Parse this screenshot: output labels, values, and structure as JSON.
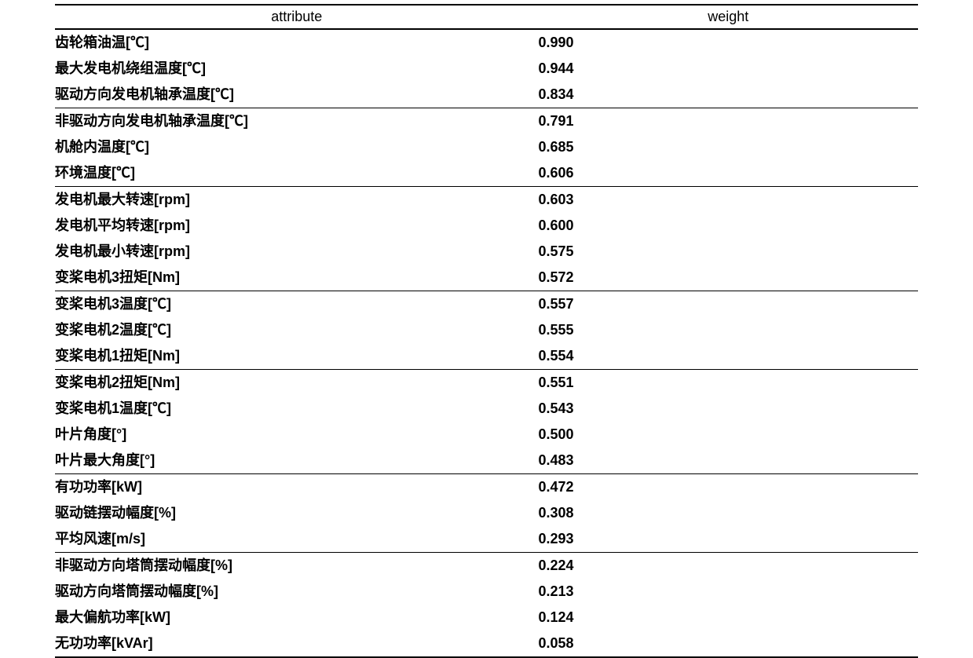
{
  "table": {
    "columns": {
      "attribute": "attribute",
      "weight": "weight"
    },
    "rows": [
      {
        "attribute": "齿轮箱油温[℃]",
        "weight": "0.990",
        "group_end": false
      },
      {
        "attribute": "最大发电机绕组温度[℃]",
        "weight": "0.944",
        "group_end": false
      },
      {
        "attribute": "驱动方向发电机轴承温度[℃]",
        "weight": "0.834",
        "group_end": true
      },
      {
        "attribute": "非驱动方向发电机轴承温度[℃]",
        "weight": "0.791",
        "group_end": false
      },
      {
        "attribute": "机舱内温度[℃]",
        "weight": "0.685",
        "group_end": false
      },
      {
        "attribute": "环境温度[℃]",
        "weight": "0.606",
        "group_end": true
      },
      {
        "attribute": "发电机最大转速[rpm]",
        "weight": "0.603",
        "group_end": false
      },
      {
        "attribute": "发电机平均转速[rpm]",
        "weight": "0.600",
        "group_end": false
      },
      {
        "attribute": "发电机最小转速[rpm]",
        "weight": "0.575",
        "group_end": false
      },
      {
        "attribute": "变桨电机3扭矩[Nm]",
        "weight": "0.572",
        "group_end": true
      },
      {
        "attribute": "变桨电机3温度[℃]",
        "weight": "0.557",
        "group_end": false
      },
      {
        "attribute": "变桨电机2温度[℃]",
        "weight": "0.555",
        "group_end": false
      },
      {
        "attribute": "变桨电机1扭矩[Nm]",
        "weight": "0.554",
        "group_end": true
      },
      {
        "attribute": "变桨电机2扭矩[Nm]",
        "weight": "0.551",
        "group_end": false
      },
      {
        "attribute": "变桨电机1温度[℃]",
        "weight": "0.543",
        "group_end": false
      },
      {
        "attribute": "叶片角度[°]",
        "weight": "0.500",
        "group_end": false
      },
      {
        "attribute": "叶片最大角度[°]",
        "weight": "0.483",
        "group_end": true
      },
      {
        "attribute": "有功功率[kW]",
        "weight": "0.472",
        "group_end": false
      },
      {
        "attribute": "驱动链摆动幅度[%]",
        "weight": "0.308",
        "group_end": false
      },
      {
        "attribute": "平均风速[m/s]",
        "weight": "0.293",
        "group_end": true
      },
      {
        "attribute": "非驱动方向塔筒摆动幅度[%]",
        "weight": "0.224",
        "group_end": false
      },
      {
        "attribute": "驱动方向塔筒摆动幅度[%]",
        "weight": "0.213",
        "group_end": false
      },
      {
        "attribute": "最大偏航功率[kW]",
        "weight": "0.124",
        "group_end": false
      },
      {
        "attribute": "无功功率[kVAr]",
        "weight": "0.058",
        "group_end": false
      }
    ],
    "styling": {
      "background_color": "#ffffff",
      "text_color": "#000000",
      "border_color": "#000000",
      "header_border_width": 2,
      "group_border_width": 1,
      "bottom_border_width": 2,
      "header_fontsize": 18,
      "row_fontsize": 18,
      "row_font_weight": "bold",
      "attr_col_width_pct": 56,
      "weight_col_width_pct": 44
    }
  }
}
